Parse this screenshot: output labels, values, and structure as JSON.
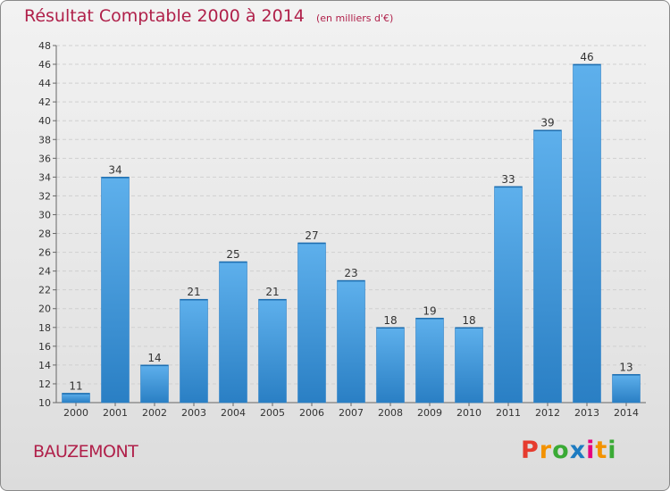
{
  "title": "Résultat Comptable 2000 à 2014",
  "subtitle": "(en milliers d'€)",
  "commune": "BAUZEMONT",
  "logo": {
    "text": "Proxiti",
    "colors": [
      "#e63b2e",
      "#f39200",
      "#3aaa35",
      "#1d7bc1",
      "#e6007e",
      "#f39200",
      "#3aaa35"
    ]
  },
  "colors": {
    "bar": "#3f97de",
    "bar_light": "#5eb0ec",
    "bar_dark": "#2a7fc4",
    "title": "#b0204a",
    "grid": "#d0d0d0"
  },
  "chart_data": {
    "type": "bar",
    "title": "Résultat Comptable 2000 à 2014",
    "subtitle": "(en milliers d'€)",
    "categories": [
      "2000",
      "2001",
      "2002",
      "2003",
      "2004",
      "2005",
      "2006",
      "2007",
      "2008",
      "2009",
      "2010",
      "2011",
      "2012",
      "2013",
      "2014"
    ],
    "values": [
      11,
      34,
      14,
      21,
      25,
      21,
      27,
      23,
      18,
      19,
      18,
      33,
      39,
      46,
      13
    ],
    "ylim": [
      10,
      48
    ],
    "yticks": [
      10,
      12,
      14,
      16,
      18,
      20,
      22,
      24,
      26,
      28,
      30,
      32,
      34,
      36,
      38,
      40,
      42,
      44,
      46,
      48
    ],
    "grid": true,
    "data_labels": true
  }
}
